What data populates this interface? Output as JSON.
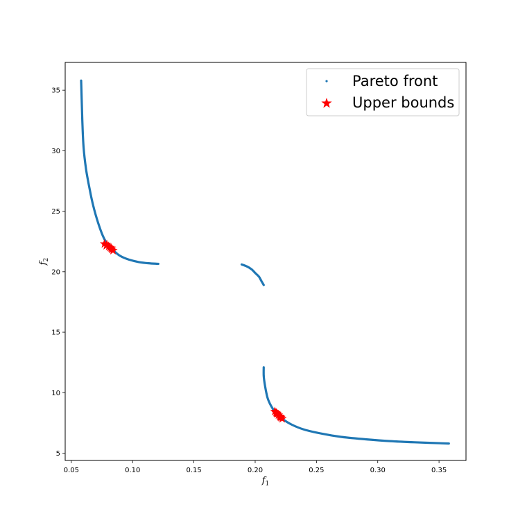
{
  "chart_data": {
    "type": "scatter",
    "xlabel": "f",
    "xlabel_sub": "1",
    "ylabel": "f",
    "ylabel_sub": "2",
    "xlim": [
      0.045,
      0.372
    ],
    "ylim": [
      4.4,
      37.3
    ],
    "xticks": [
      0.05,
      0.1,
      0.15,
      0.2,
      0.25,
      0.3,
      0.35
    ],
    "xtick_labels": [
      "0.05",
      "0.10",
      "0.15",
      "0.20",
      "0.25",
      "0.30",
      "0.35"
    ],
    "yticks": [
      5,
      10,
      15,
      20,
      25,
      30,
      35
    ],
    "ytick_labels": [
      "5",
      "10",
      "15",
      "20",
      "25",
      "30",
      "35"
    ],
    "grid": false,
    "legend_position": "top-right",
    "series": [
      {
        "name": "Pareto front",
        "marker": "point",
        "color": "#1f77b4",
        "segments": [
          [
            [
              0.058,
              35.8
            ],
            [
              0.059,
              32.5
            ],
            [
              0.06,
              30.3
            ],
            [
              0.062,
              28.5
            ],
            [
              0.065,
              26.8
            ],
            [
              0.068,
              25.4
            ],
            [
              0.072,
              24.0
            ],
            [
              0.076,
              22.9
            ],
            [
              0.08,
              22.2
            ],
            [
              0.085,
              21.7
            ],
            [
              0.09,
              21.3
            ],
            [
              0.097,
              21.0
            ],
            [
              0.105,
              20.8
            ],
            [
              0.113,
              20.7
            ],
            [
              0.121,
              20.65
            ]
          ],
          [
            [
              0.189,
              20.6
            ],
            [
              0.193,
              20.45
            ],
            [
              0.197,
              20.2
            ],
            [
              0.2,
              19.9
            ],
            [
              0.203,
              19.6
            ],
            [
              0.205,
              19.25
            ],
            [
              0.207,
              18.9
            ]
          ],
          [
            [
              0.207,
              12.1
            ],
            [
              0.207,
              11.4
            ],
            [
              0.208,
              10.6
            ],
            [
              0.21,
              9.6
            ],
            [
              0.213,
              8.9
            ],
            [
              0.217,
              8.3
            ],
            [
              0.222,
              7.85
            ],
            [
              0.23,
              7.35
            ],
            [
              0.24,
              6.95
            ],
            [
              0.255,
              6.6
            ],
            [
              0.27,
              6.35
            ],
            [
              0.29,
              6.15
            ],
            [
              0.31,
              6.0
            ],
            [
              0.33,
              5.9
            ],
            [
              0.358,
              5.8
            ]
          ]
        ]
      },
      {
        "name": "Upper bounds",
        "marker": "star",
        "color": "#ff0000",
        "points": [
          [
            0.077,
            22.3
          ],
          [
            0.079,
            22.25
          ],
          [
            0.0805,
            22.1
          ],
          [
            0.0815,
            22.0
          ],
          [
            0.083,
            21.85
          ],
          [
            0.084,
            21.75
          ],
          [
            0.0785,
            22.15
          ],
          [
            0.0825,
            21.95
          ],
          [
            0.216,
            8.45
          ],
          [
            0.217,
            8.35
          ],
          [
            0.218,
            8.25
          ],
          [
            0.219,
            8.15
          ],
          [
            0.22,
            8.05
          ],
          [
            0.221,
            7.95
          ],
          [
            0.222,
            7.85
          ],
          [
            0.2175,
            8.3
          ],
          [
            0.2205,
            8.0
          ]
        ]
      }
    ]
  }
}
